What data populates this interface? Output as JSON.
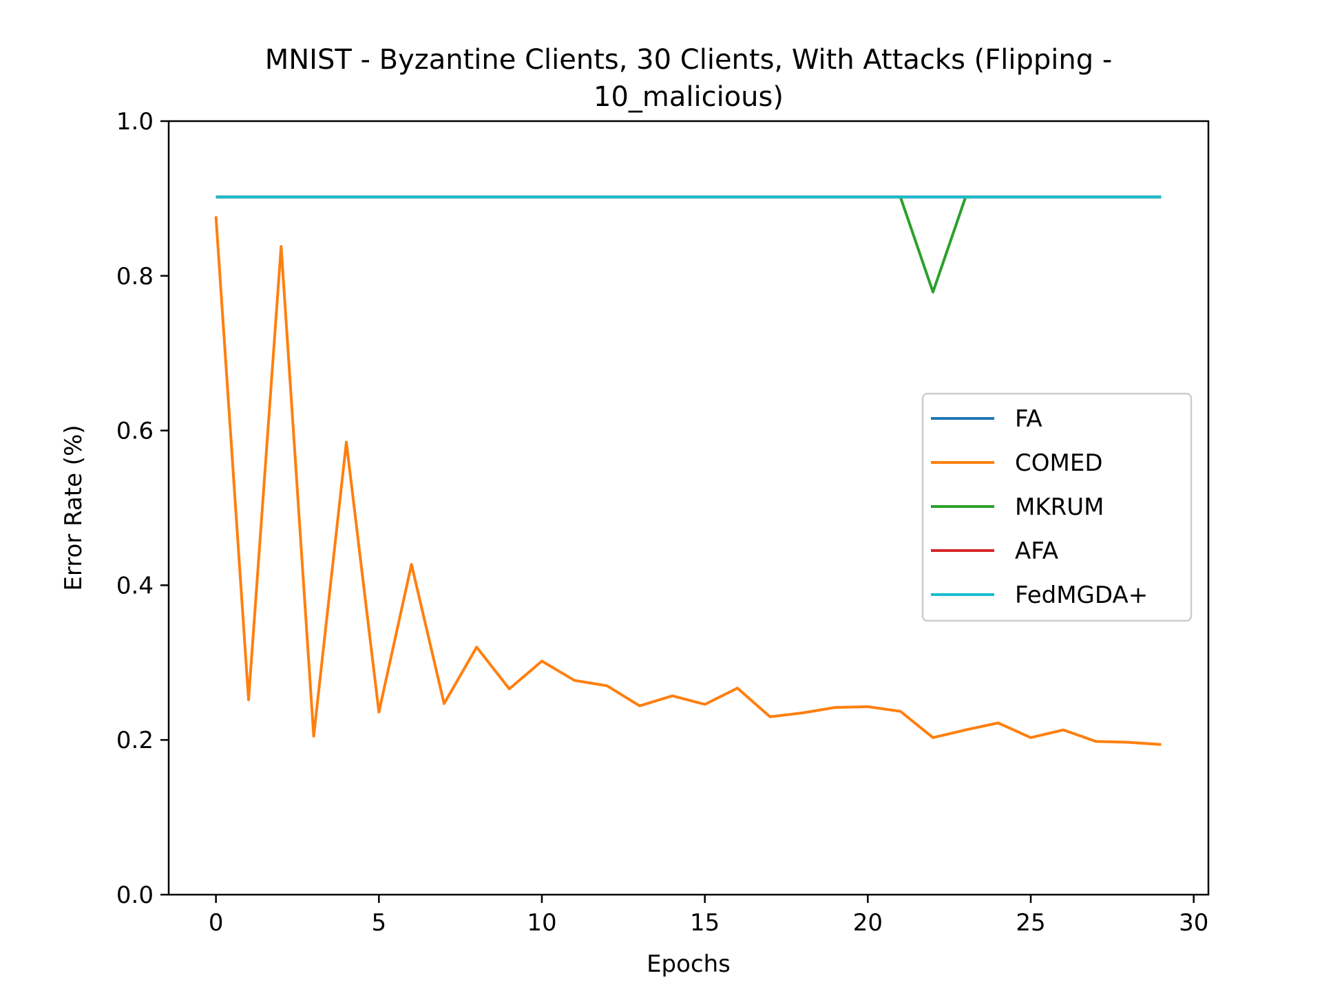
{
  "chart_data": {
    "type": "line",
    "title_lines": [
      "MNIST - Byzantine Clients, 30 Clients, With Attacks (Flipping -",
      "10_malicious)"
    ],
    "xlabel": "Epochs",
    "ylabel": "Error Rate (%)",
    "xlim": [
      -1.45,
      30.45
    ],
    "ylim": [
      0.0,
      1.0
    ],
    "xticks": [
      0,
      5,
      10,
      15,
      20,
      25,
      30
    ],
    "yticks": [
      0.0,
      0.2,
      0.4,
      0.6,
      0.8,
      1.0
    ],
    "xtick_labels": [
      "0",
      "5",
      "10",
      "15",
      "20",
      "25",
      "30"
    ],
    "ytick_labels": [
      "0.0",
      "0.2",
      "0.4",
      "0.6",
      "0.8",
      "1.0"
    ],
    "grid": false,
    "legend_position": "center-right",
    "x": [
      0,
      1,
      2,
      3,
      4,
      5,
      6,
      7,
      8,
      9,
      10,
      11,
      12,
      13,
      14,
      15,
      16,
      17,
      18,
      19,
      20,
      21,
      22,
      23,
      24,
      25,
      26,
      27,
      28,
      29
    ],
    "series": [
      {
        "name": "FA",
        "color": "#1f77b4",
        "values": [
          0.902,
          0.902,
          0.902,
          0.902,
          0.902,
          0.902,
          0.902,
          0.902,
          0.902,
          0.902,
          0.902,
          0.902,
          0.902,
          0.902,
          0.902,
          0.902,
          0.902,
          0.902,
          0.902,
          0.902,
          0.902,
          0.902,
          0.902,
          0.902,
          0.902,
          0.902,
          0.902,
          0.902,
          0.902,
          0.902
        ]
      },
      {
        "name": "COMED",
        "color": "#ff7f0e",
        "values": [
          0.877,
          0.252,
          0.838,
          0.205,
          0.585,
          0.236,
          0.427,
          0.247,
          0.32,
          0.266,
          0.302,
          0.277,
          0.27,
          0.244,
          0.257,
          0.246,
          0.267,
          0.23,
          0.235,
          0.242,
          0.243,
          0.237,
          0.203,
          0.213,
          0.222,
          0.203,
          0.213,
          0.198,
          0.197,
          0.194
        ]
      },
      {
        "name": "MKRUM",
        "color": "#2ca02c",
        "values": [
          0.902,
          0.902,
          0.902,
          0.902,
          0.902,
          0.902,
          0.902,
          0.902,
          0.902,
          0.902,
          0.902,
          0.902,
          0.902,
          0.902,
          0.902,
          0.902,
          0.902,
          0.902,
          0.902,
          0.902,
          0.902,
          0.902,
          0.779,
          0.902,
          0.902,
          0.902,
          0.902,
          0.902,
          0.902,
          0.902
        ]
      },
      {
        "name": "AFA",
        "color": "#d62728",
        "values": [
          0.902,
          0.902,
          0.902,
          0.902,
          0.902,
          0.902,
          0.902,
          0.902,
          0.902,
          0.902,
          0.902,
          0.902,
          0.902,
          0.902,
          0.902,
          0.902,
          0.902,
          0.902,
          0.902,
          0.902,
          0.902,
          0.902,
          0.902,
          0.902,
          0.902,
          0.902,
          0.902,
          0.902,
          0.902,
          0.902
        ]
      },
      {
        "name": "FedMGDA+",
        "color": "#17becf",
        "values": [
          0.902,
          0.902,
          0.902,
          0.902,
          0.902,
          0.902,
          0.902,
          0.902,
          0.902,
          0.902,
          0.902,
          0.902,
          0.902,
          0.902,
          0.902,
          0.902,
          0.902,
          0.902,
          0.902,
          0.902,
          0.902,
          0.902,
          0.902,
          0.902,
          0.902,
          0.902,
          0.902,
          0.902,
          0.902,
          0.902
        ]
      }
    ]
  }
}
